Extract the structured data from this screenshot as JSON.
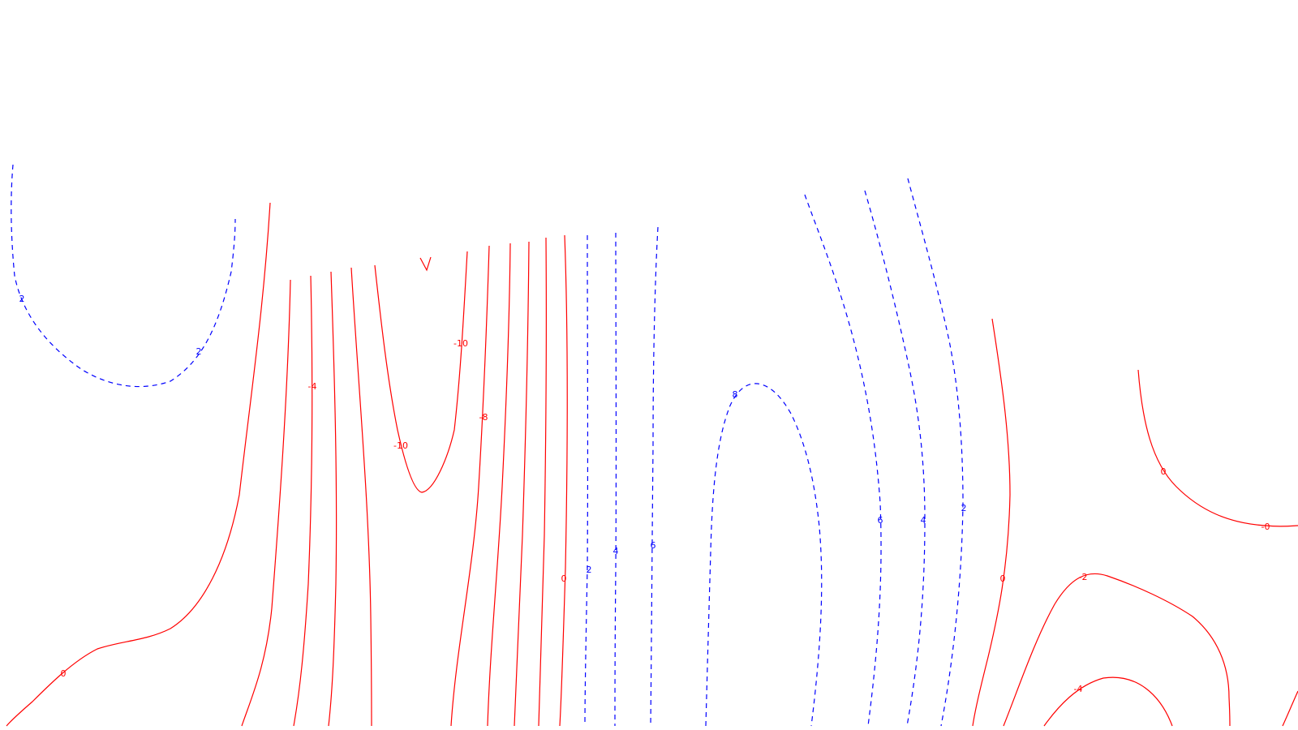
{
  "chart_data": {
    "type": "contour",
    "title": "",
    "xlabel": "",
    "ylabel": "",
    "colors": {
      "positive": "#0000ff",
      "negative": "#ff0000",
      "background": "#ffffff"
    },
    "contour_labels": [
      {
        "text": "2",
        "sign": "positive"
      },
      {
        "text": "2",
        "sign": "positive"
      },
      {
        "text": "-4",
        "sign": "negative"
      },
      {
        "text": "-10",
        "sign": "negative"
      },
      {
        "text": "-8",
        "sign": "negative"
      },
      {
        "text": "-10",
        "sign": "negative"
      },
      {
        "text": "8",
        "sign": "positive"
      },
      {
        "text": "0",
        "sign": "negative"
      },
      {
        "text": "6",
        "sign": "positive"
      },
      {
        "text": "4",
        "sign": "positive"
      },
      {
        "text": "2",
        "sign": "positive"
      },
      {
        "text": "0",
        "sign": "negative"
      },
      {
        "text": "-0",
        "sign": "negative"
      },
      {
        "text": "6",
        "sign": "positive"
      },
      {
        "text": "4",
        "sign": "positive"
      },
      {
        "text": "0",
        "sign": "negative"
      },
      {
        "text": "2",
        "sign": "positive"
      },
      {
        "text": "0",
        "sign": "negative"
      },
      {
        "text": "-2",
        "sign": "negative"
      },
      {
        "text": "-4",
        "sign": "negative"
      }
    ]
  }
}
